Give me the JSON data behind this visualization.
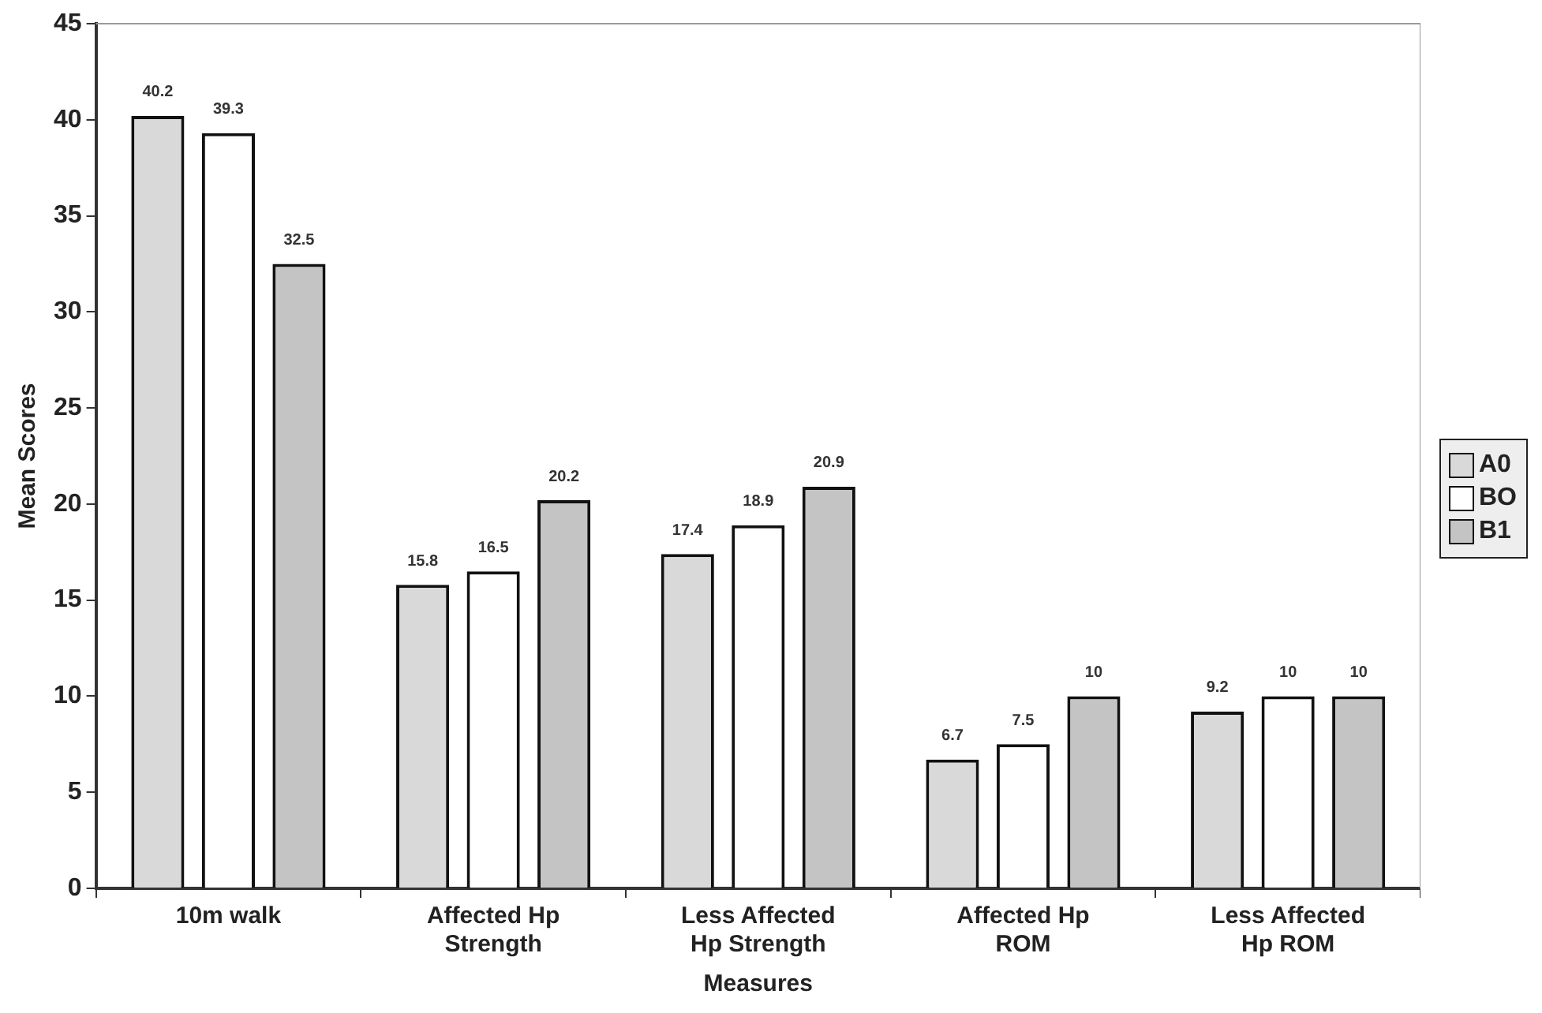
{
  "chart_data": {
    "type": "bar",
    "xlabel": "Measures",
    "ylabel": "Mean Scores",
    "categories": [
      "10m walk",
      "Affected Hp Strength",
      "Less Affected Hp Strength",
      "Affected Hp ROM",
      "Less Affected Hp ROM"
    ],
    "series": [
      {
        "name": "A0",
        "color": "#d9d9d9",
        "values": [
          40.2,
          15.8,
          17.4,
          6.7,
          9.2
        ]
      },
      {
        "name": "BO",
        "color": "#ffffff",
        "values": [
          39.3,
          16.5,
          18.9,
          7.5,
          10
        ]
      },
      {
        "name": "B1",
        "color": "#c4c4c4",
        "values": [
          32.5,
          20.2,
          20.9,
          10,
          10
        ]
      }
    ],
    "ylim": [
      0,
      45
    ],
    "yticks": [
      0,
      5,
      10,
      15,
      20,
      25,
      30,
      35,
      40,
      45
    ],
    "grid": false,
    "legend": "right",
    "data_labels": true
  }
}
